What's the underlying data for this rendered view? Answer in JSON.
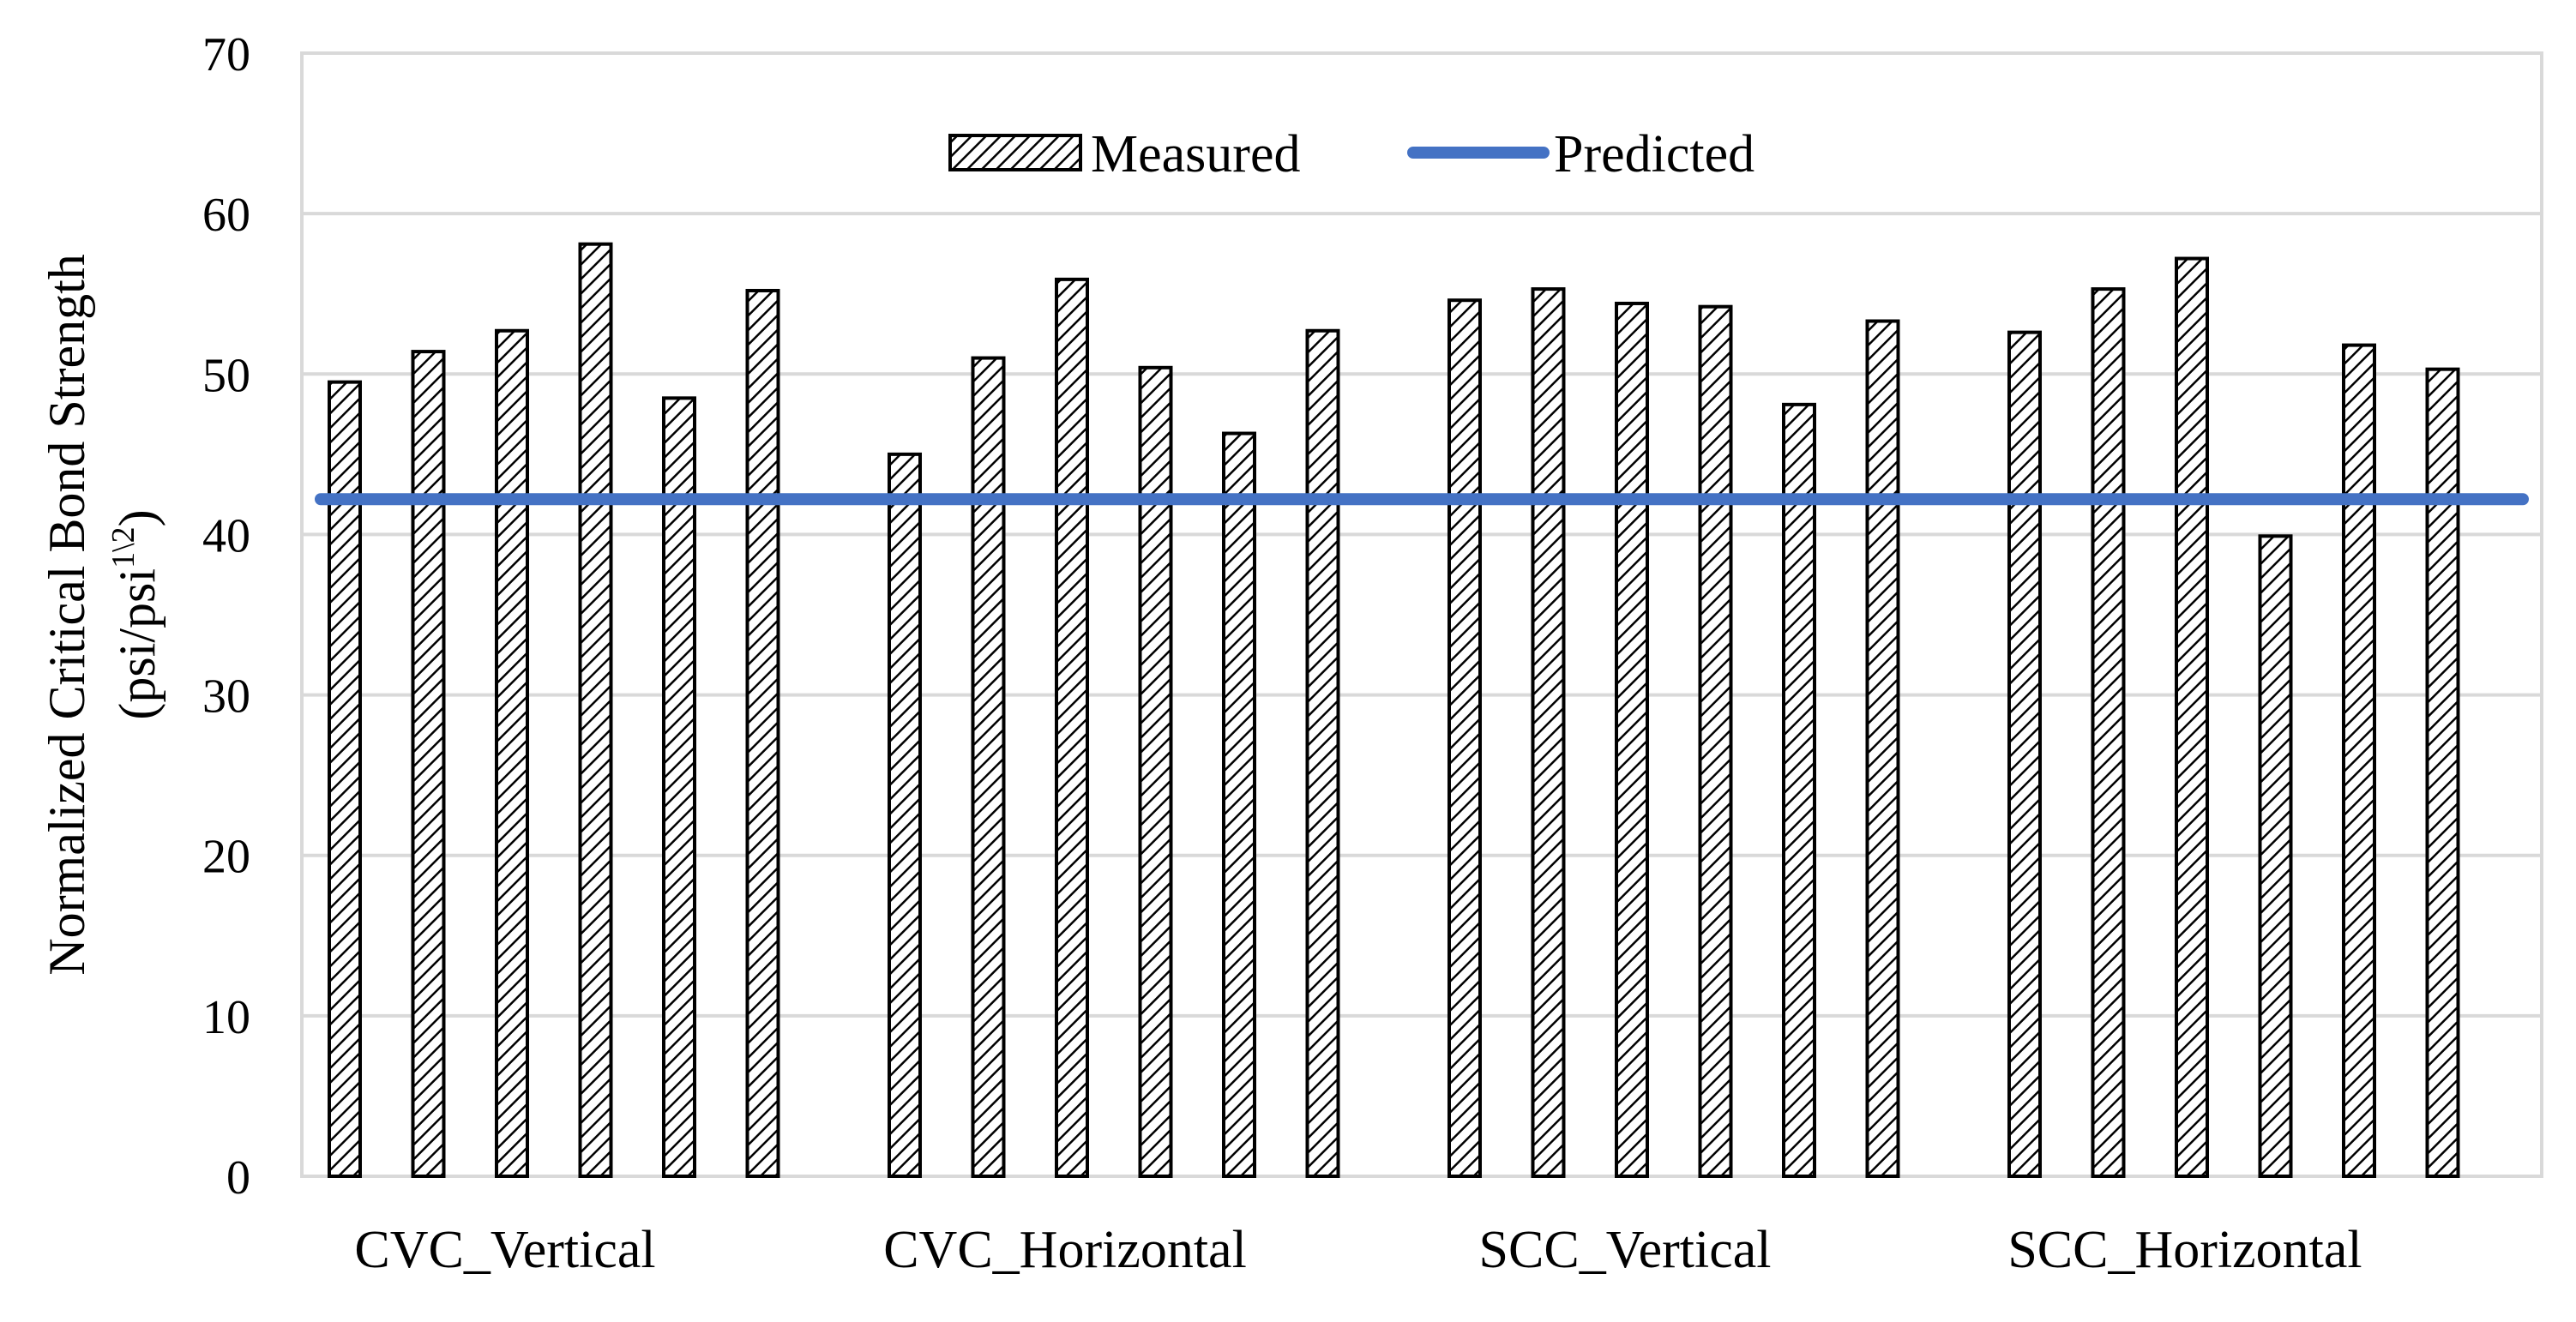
{
  "chart_data": {
    "type": "bar",
    "title": "",
    "xlabel": "",
    "ylabel": "Normalized Critical Bond Strength",
    "ylabel_unit": "(psi/psi",
    "ylabel_unit_sup": "1\\2",
    "ylabel_unit_close": ")",
    "ylim": [
      0,
      70
    ],
    "yticks": [
      0,
      10,
      20,
      30,
      40,
      50,
      60,
      70
    ],
    "grid": true,
    "legend_position": "top-center",
    "categories": [
      "CVC_Vertical",
      "CVC_Horizontal",
      "SCC_Vertical",
      "SCC_Horizontal"
    ],
    "series": [
      {
        "name": "Measured",
        "kind": "bar",
        "pattern": "diagonal-hatch",
        "values": [
          [
            49.5,
            51.4,
            52.7,
            58.1,
            48.5,
            55.2
          ],
          [
            45.0,
            51.0,
            55.9,
            50.4,
            46.3,
            52.7
          ],
          [
            54.6,
            55.3,
            54.4,
            54.2,
            48.1,
            53.3
          ],
          [
            52.6,
            55.3,
            57.2,
            39.9,
            51.8,
            50.3
          ]
        ]
      },
      {
        "name": "Predicted",
        "kind": "line",
        "color": "#4472C4",
        "value": 42.2
      }
    ],
    "colors": {
      "grid": "#d9d9d9",
      "bar_border": "#000000",
      "line": "#4472C4"
    }
  }
}
